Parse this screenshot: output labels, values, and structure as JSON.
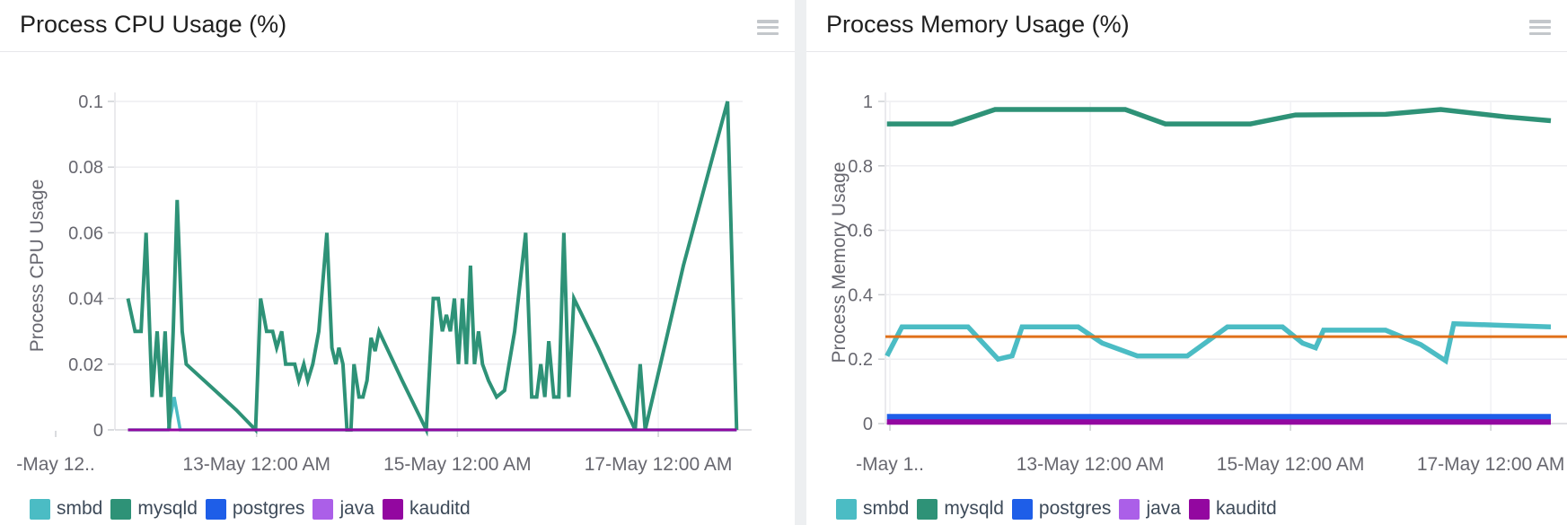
{
  "page": {
    "background": "#ffffff",
    "divider_color": "#edeff1"
  },
  "panels": [
    {
      "title": "Process CPU Usage (%)"
    },
    {
      "title": "Process Memory Usage (%)"
    }
  ],
  "colors": {
    "smbd": "#4bbcc4",
    "mysqld": "#2e9277",
    "postgres": "#1e5ee8",
    "java": "#ab5fe8",
    "kauditd": "#9307a0",
    "threshold": "#e0701a",
    "tick_text": "#67676f",
    "legend_text": "#3d4a59",
    "gridline": "#ededf0",
    "axis_line": "#d6d6db"
  },
  "chart_data": [
    {
      "type": "line",
      "title": "Process CPU Usage (%)",
      "xlabel": "",
      "ylabel": "Process CPU Usage",
      "ylim": [
        0,
        0.1
      ],
      "yticks": [
        {
          "value": 0,
          "label": "0"
        },
        {
          "value": 0.02,
          "label": "0.02"
        },
        {
          "value": 0.04,
          "label": "0.04"
        },
        {
          "value": 0.06,
          "label": "0.06"
        },
        {
          "value": 0.08,
          "label": "0.08"
        },
        {
          "value": 0.1,
          "label": "0.1"
        }
      ],
      "xlim_days": [
        11.59,
        17.84
      ],
      "xticks": [
        {
          "day": 11,
          "label": "-May 12.."
        },
        {
          "day": 13,
          "label": "13-May 12:00 AM"
        },
        {
          "day": 15,
          "label": "15-May 12:00 AM"
        },
        {
          "day": 17,
          "label": "17-May 12:00 AM"
        }
      ],
      "grid": true,
      "legend_position": "bottom-left",
      "series": [
        {
          "name": "smbd",
          "color": "#4bbcc4",
          "width": 3.5,
          "in_legend": true,
          "points": [
            [
              11.72,
              0
            ],
            [
              12.12,
              0
            ],
            [
              12.18,
              0.01
            ],
            [
              12.24,
              0
            ],
            [
              17.78,
              0
            ]
          ]
        },
        {
          "name": "mysqld",
          "color": "#2e9277",
          "width": 4,
          "in_legend": true,
          "points": [
            [
              11.72,
              0.04
            ],
            [
              11.79,
              0.03
            ],
            [
              11.85,
              0.03
            ],
            [
              11.9,
              0.06
            ],
            [
              11.96,
              0.01
            ],
            [
              12.01,
              0.03
            ],
            [
              12.05,
              0.01
            ],
            [
              12.09,
              0.03
            ],
            [
              12.13,
              0.0
            ],
            [
              12.17,
              0.03
            ],
            [
              12.21,
              0.07
            ],
            [
              12.26,
              0.03
            ],
            [
              12.3,
              0.02
            ],
            [
              12.55,
              0.013
            ],
            [
              12.8,
              0.006
            ],
            [
              12.99,
              0.0
            ],
            [
              13.04,
              0.04
            ],
            [
              13.1,
              0.03
            ],
            [
              13.16,
              0.03
            ],
            [
              13.2,
              0.025
            ],
            [
              13.25,
              0.03
            ],
            [
              13.29,
              0.02
            ],
            [
              13.38,
              0.02
            ],
            [
              13.42,
              0.015
            ],
            [
              13.47,
              0.02
            ],
            [
              13.51,
              0.015
            ],
            [
              13.56,
              0.02
            ],
            [
              13.62,
              0.03
            ],
            [
              13.66,
              0.045
            ],
            [
              13.7,
              0.06
            ],
            [
              13.75,
              0.025
            ],
            [
              13.79,
              0.02
            ],
            [
              13.82,
              0.025
            ],
            [
              13.86,
              0.02
            ],
            [
              13.9,
              0.0
            ],
            [
              13.94,
              0.0
            ],
            [
              13.97,
              0.02
            ],
            [
              14.02,
              0.01
            ],
            [
              14.06,
              0.01
            ],
            [
              14.1,
              0.015
            ],
            [
              14.14,
              0.028
            ],
            [
              14.18,
              0.024
            ],
            [
              14.22,
              0.03
            ],
            [
              14.45,
              0.015
            ],
            [
              14.69,
              0.0
            ],
            [
              14.76,
              0.04
            ],
            [
              14.81,
              0.04
            ],
            [
              14.85,
              0.03
            ],
            [
              14.89,
              0.035
            ],
            [
              14.93,
              0.03
            ],
            [
              14.97,
              0.04
            ],
            [
              15.01,
              0.02
            ],
            [
              15.05,
              0.04
            ],
            [
              15.09,
              0.02
            ],
            [
              15.13,
              0.05
            ],
            [
              15.17,
              0.02
            ],
            [
              15.21,
              0.03
            ],
            [
              15.25,
              0.02
            ],
            [
              15.31,
              0.015
            ],
            [
              15.39,
              0.01
            ],
            [
              15.47,
              0.012
            ],
            [
              15.57,
              0.03
            ],
            [
              15.68,
              0.06
            ],
            [
              15.74,
              0.01
            ],
            [
              15.79,
              0.01
            ],
            [
              15.83,
              0.02
            ],
            [
              15.87,
              0.01
            ],
            [
              15.91,
              0.027
            ],
            [
              15.96,
              0.01
            ],
            [
              16.01,
              0.01
            ],
            [
              16.06,
              0.06
            ],
            [
              16.11,
              0.01
            ],
            [
              16.16,
              0.04
            ],
            [
              16.4,
              0.025
            ],
            [
              16.77,
              0.0
            ],
            [
              16.82,
              0.02
            ],
            [
              16.87,
              0.0
            ],
            [
              17.25,
              0.05
            ],
            [
              17.69,
              0.1
            ],
            [
              17.78,
              0.0
            ]
          ]
        },
        {
          "name": "postgres",
          "color": "#1e5ee8",
          "width": 3,
          "in_legend": true,
          "points": [
            [
              11.72,
              0
            ],
            [
              17.78,
              0
            ]
          ]
        },
        {
          "name": "java",
          "color": "#ab5fe8",
          "width": 3,
          "in_legend": true,
          "points": [
            [
              11.72,
              0
            ],
            [
              17.78,
              0
            ]
          ]
        },
        {
          "name": "kauditd",
          "color": "#9307a0",
          "width": 3,
          "in_legend": true,
          "points": [
            [
              11.72,
              0
            ],
            [
              17.78,
              0
            ]
          ]
        }
      ]
    },
    {
      "type": "line",
      "title": "Process Memory Usage (%)",
      "xlabel": "",
      "ylabel": "Process Memory Usage",
      "ylim": [
        0,
        1
      ],
      "yticks": [
        {
          "value": 0,
          "label": "0"
        },
        {
          "value": 0.2,
          "label": "0.2"
        },
        {
          "value": 0.4,
          "label": "0.4"
        },
        {
          "value": 0.6,
          "label": "0.6"
        },
        {
          "value": 0.8,
          "label": "0.8"
        },
        {
          "value": 1,
          "label": "1"
        }
      ],
      "xlim_days": [
        10.955,
        17.77
      ],
      "xticks": [
        {
          "day": 11,
          "label": "-May 1.."
        },
        {
          "day": 13,
          "label": "13-May 12:00 AM"
        },
        {
          "day": 15,
          "label": "15-May 12:00 AM"
        },
        {
          "day": 17,
          "label": "17-May 12:00 AM"
        }
      ],
      "grid": true,
      "legend_position": "bottom-left",
      "threshold_line": {
        "value": 0.27,
        "color": "#e0701a"
      },
      "series": [
        {
          "name": "smbd",
          "color": "#4bbcc4",
          "width": 5.5,
          "in_legend": true,
          "points": [
            [
              10.97,
              0.21
            ],
            [
              11.12,
              0.3
            ],
            [
              11.78,
              0.3
            ],
            [
              12.08,
              0.2
            ],
            [
              12.22,
              0.21
            ],
            [
              12.32,
              0.3
            ],
            [
              12.88,
              0.3
            ],
            [
              13.12,
              0.25
            ],
            [
              13.47,
              0.21
            ],
            [
              13.97,
              0.21
            ],
            [
              14.37,
              0.3
            ],
            [
              14.92,
              0.3
            ],
            [
              15.12,
              0.25
            ],
            [
              15.25,
              0.235
            ],
            [
              15.33,
              0.29
            ],
            [
              15.95,
              0.29
            ],
            [
              16.3,
              0.245
            ],
            [
              16.55,
              0.195
            ],
            [
              16.63,
              0.31
            ],
            [
              17.1,
              0.305
            ],
            [
              17.6,
              0.3
            ]
          ]
        },
        {
          "name": "mysqld",
          "color": "#2e9277",
          "width": 5.5,
          "in_legend": true,
          "points": [
            [
              10.97,
              0.93
            ],
            [
              11.62,
              0.93
            ],
            [
              12.05,
              0.975
            ],
            [
              13.35,
              0.975
            ],
            [
              13.75,
              0.93
            ],
            [
              14.6,
              0.93
            ],
            [
              15.05,
              0.958
            ],
            [
              15.95,
              0.96
            ],
            [
              16.5,
              0.975
            ],
            [
              17.15,
              0.952
            ],
            [
              17.6,
              0.94
            ]
          ]
        },
        {
          "name": "postgres",
          "color": "#1e5ee8",
          "width": 7,
          "in_legend": true,
          "points": [
            [
              10.97,
              0.02
            ],
            [
              17.6,
              0.02
            ]
          ]
        },
        {
          "name": "java",
          "color": "#ab5fe8",
          "width": 4,
          "in_legend": true,
          "points": [
            [
              10.97,
              0.005
            ],
            [
              17.6,
              0.005
            ]
          ]
        },
        {
          "name": "kauditd",
          "color": "#9307a0",
          "width": 6,
          "in_legend": true,
          "points": [
            [
              10.97,
              0.005
            ],
            [
              17.6,
              0.005
            ]
          ]
        },
        {
          "name": "threshold",
          "color": "#e0701a",
          "width": 3,
          "in_legend": false,
          "points": [
            [
              10.955,
              0.27
            ],
            [
              17.77,
              0.27
            ]
          ]
        }
      ]
    }
  ]
}
